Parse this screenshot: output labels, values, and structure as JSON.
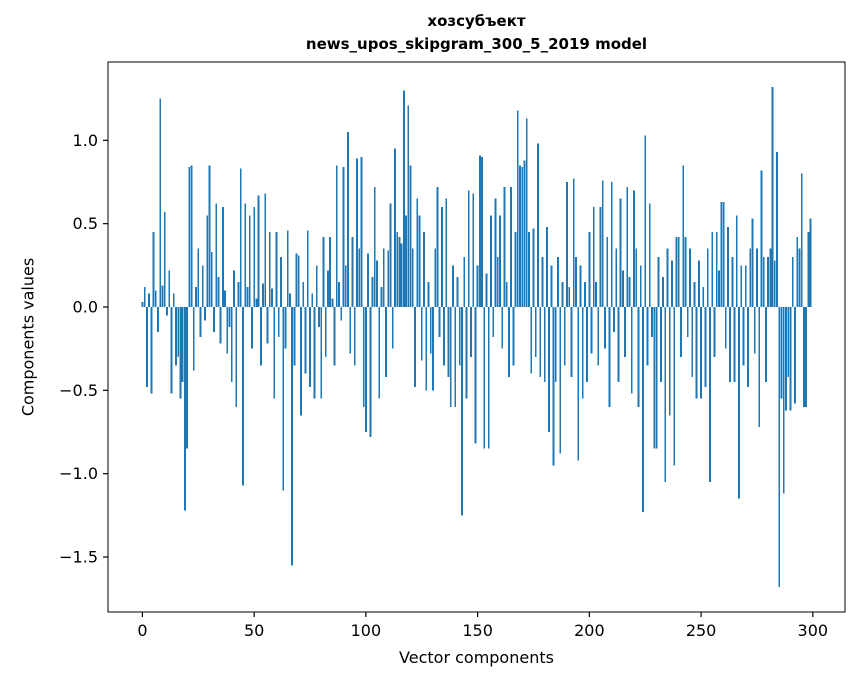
{
  "figure": {
    "title_line1": "хозсубъект",
    "title_line2": "news_upos_skipgram_300_5_2019 model",
    "xlabel": "Vector components",
    "ylabel": "Components values"
  },
  "chart_data": {
    "type": "bar",
    "title": "хозсубъект\nnews_upos_skipgram_300_5_2019 model",
    "xlabel": "Vector components",
    "ylabel": "Components values",
    "bar_color": "#1f77b4",
    "grid": false,
    "legend": "none",
    "x_ticks": [
      0,
      50,
      100,
      150,
      200,
      250,
      300
    ],
    "y_ticks": [
      -1.5,
      -1.0,
      -0.5,
      0.0,
      0.5,
      1.0
    ],
    "xlim": [
      -15.4,
      314.4
    ],
    "ylim": [
      -1.83,
      1.47
    ],
    "x_start": 0,
    "values": [
      0.03,
      0.12,
      -0.48,
      0.08,
      -0.52,
      0.45,
      0.1,
      -0.15,
      1.25,
      0.13,
      0.57,
      -0.05,
      0.22,
      -0.52,
      0.08,
      -0.35,
      -0.3,
      -0.55,
      -0.45,
      -1.22,
      -0.85,
      0.84,
      0.85,
      -0.38,
      0.12,
      0.35,
      -0.18,
      0.25,
      -0.08,
      0.55,
      0.85,
      0.33,
      -0.15,
      0.62,
      0.18,
      -0.22,
      0.6,
      0.1,
      -0.28,
      -0.12,
      -0.45,
      0.22,
      -0.6,
      0.15,
      0.83,
      -1.07,
      0.62,
      0.12,
      0.55,
      -0.25,
      0.6,
      0.05,
      0.67,
      -0.35,
      0.14,
      0.68,
      -0.22,
      0.45,
      0.11,
      -0.55,
      0.45,
      -0.18,
      0.3,
      -1.1,
      -0.25,
      0.46,
      0.08,
      -1.55,
      -0.35,
      0.32,
      0.31,
      -0.65,
      0.15,
      -0.4,
      0.46,
      -0.48,
      0.08,
      -0.55,
      0.25,
      -0.12,
      -0.55,
      0.42,
      -0.3,
      0.22,
      0.42,
      0.05,
      -0.35,
      0.85,
      0.15,
      -0.08,
      0.84,
      0.25,
      1.05,
      -0.28,
      0.42,
      -0.35,
      0.89,
      0.35,
      0.9,
      -0.6,
      -0.75,
      0.32,
      -0.78,
      0.18,
      0.72,
      0.28,
      -0.55,
      0.12,
      0.35,
      -0.42,
      0.34,
      0.62,
      -0.25,
      0.95,
      0.45,
      0.42,
      0.38,
      1.3,
      0.55,
      1.21,
      0.85,
      0.35,
      -0.48,
      0.65,
      0.55,
      -0.32,
      0.45,
      -0.5,
      0.15,
      -0.28,
      -0.5,
      0.35,
      0.72,
      -0.18,
      0.6,
      -0.35,
      0.65,
      -0.42,
      -0.6,
      0.25,
      -0.6,
      0.18,
      -0.35,
      -1.25,
      0.3,
      -0.55,
      0.7,
      -0.3,
      0.68,
      -0.82,
      0.25,
      0.91,
      0.9,
      -0.85,
      0.2,
      -0.85,
      0.55,
      -0.18,
      0.65,
      0.3,
      0.55,
      -0.25,
      0.72,
      0.15,
      -0.42,
      0.72,
      -0.35,
      0.45,
      1.18,
      0.85,
      0.84,
      0.88,
      1.13,
      0.45,
      -0.4,
      0.47,
      -0.3,
      0.98,
      -0.42,
      0.3,
      -0.45,
      0.48,
      -0.75,
      0.25,
      -0.95,
      -0.45,
      0.3,
      -0.88,
      0.15,
      -0.35,
      0.75,
      0.12,
      -0.42,
      0.77,
      0.3,
      -0.92,
      0.25,
      -0.55,
      0.15,
      -0.45,
      0.45,
      -0.28,
      0.6,
      0.15,
      -0.35,
      0.6,
      0.76,
      -0.25,
      0.42,
      -0.6,
      0.75,
      -0.15,
      0.35,
      -0.45,
      0.65,
      0.22,
      -0.3,
      0.72,
      0.18,
      -0.52,
      0.7,
      0.35,
      -0.6,
      0.25,
      -1.23,
      1.03,
      -0.35,
      0.62,
      -0.18,
      -0.85,
      -0.85,
      0.3,
      -0.45,
      0.18,
      -1.05,
      0.35,
      -0.65,
      0.28,
      -0.95,
      0.42,
      0.42,
      -0.3,
      0.85,
      0.42,
      -0.18,
      0.35,
      -0.42,
      0.15,
      -0.55,
      0.28,
      -0.55,
      0.12,
      -0.48,
      0.35,
      -1.05,
      0.45,
      -0.3,
      0.45,
      0.22,
      0.63,
      0.63,
      -0.25,
      0.48,
      -0.45,
      0.3,
      -0.45,
      0.55,
      -1.15,
      0.25,
      -0.35,
      0.25,
      -0.48,
      0.35,
      0.53,
      -0.28,
      0.35,
      -0.72,
      0.82,
      0.3,
      -0.45,
      0.3,
      0.35,
      1.32,
      0.28,
      0.93,
      -1.68,
      -0.55,
      -1.12,
      -0.62,
      -0.42,
      -0.62,
      0.3,
      -0.58,
      0.42,
      0.35,
      0.8,
      -0.6,
      -0.6,
      0.45,
      0.53
    ]
  }
}
